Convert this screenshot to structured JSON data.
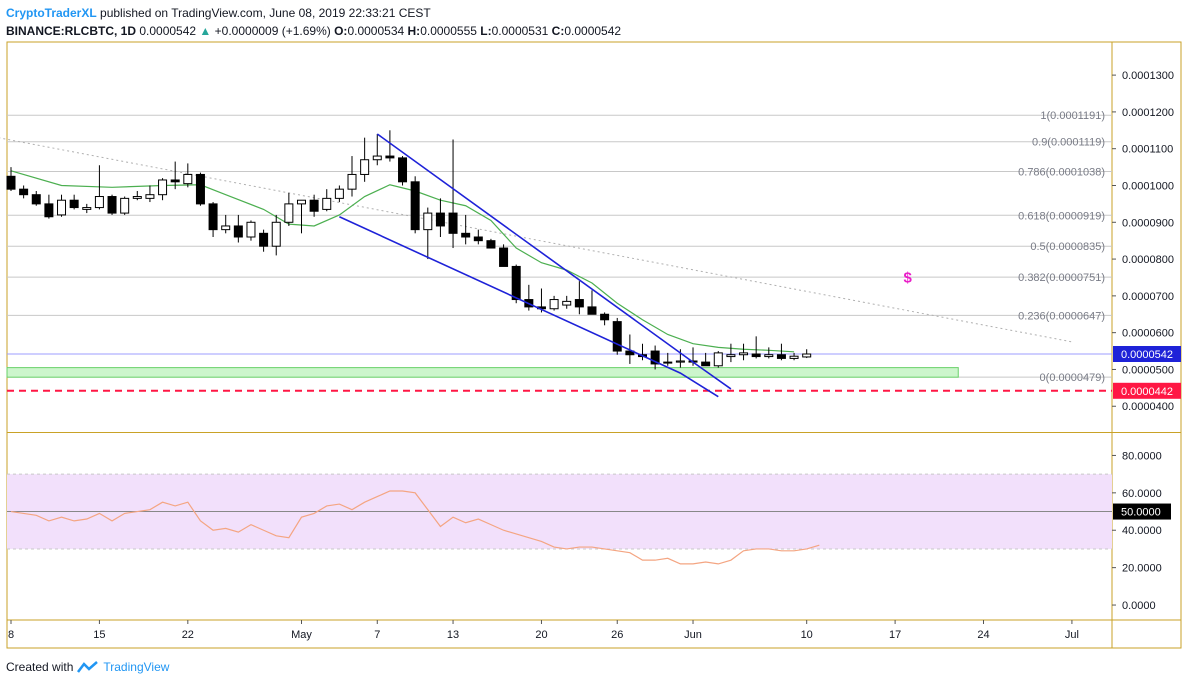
{
  "header": {
    "author": "CryptoTraderXL",
    "published": "published on TradingView.com, June 08, 2019 22:33:21 CEST",
    "symbol": "BINANCE:RLCBTC, 1D",
    "last": "0.0000542",
    "change": "+0.0000009 (+1.69%)",
    "o_label": "O:",
    "o": "0.0000534",
    "h_label": "H:",
    "h": "0.0000555",
    "l_label": "L:",
    "l": "0.0000531",
    "c_label": "C:",
    "c": "0.0000542"
  },
  "footer": {
    "created": "Created with",
    "brand": "TradingView"
  },
  "colors": {
    "frame": "#c9a227",
    "bull": "#ffffff",
    "bear": "#000000",
    "wick": "#000000",
    "ma": "#4caf50",
    "trend": "#1e22d8",
    "fib": "#c8c8c8",
    "support_zone": "#ccf5cc",
    "support_border": "#69d169",
    "red_line": "#ff1744",
    "price_line": "#9c9cff",
    "rsi": "#f4a582",
    "rsi_band": "#f2e0fb",
    "last_badge": "#1e22d8",
    "red_badge": "#ff1744",
    "dollar": "#e91ec8"
  },
  "chart_data": [
    {
      "type": "candlestick",
      "ylim": [
        3.3e-05,
        0.000139
      ],
      "y_ticks": [
        "0.0001300",
        "0.0001200",
        "0.0001100",
        "0.0001000",
        "0.0000900",
        "0.0000800",
        "0.0000700",
        "0.0000600",
        "0.0000500",
        "0.0000400"
      ],
      "y_tick_values": [
        0.00013,
        0.00012,
        0.00011,
        0.0001,
        9e-05,
        8e-05,
        7e-05,
        6e-05,
        5e-05,
        4e-05
      ],
      "x_ticks": [
        {
          "label": "8",
          "day": 0
        },
        {
          "label": "15",
          "day": 7
        },
        {
          "label": "22",
          "day": 14
        },
        {
          "label": "May",
          "day": 23
        },
        {
          "label": "7",
          "day": 29
        },
        {
          "label": "13",
          "day": 35
        },
        {
          "label": "20",
          "day": 42
        },
        {
          "label": "26",
          "day": 48
        },
        {
          "label": "Jun",
          "day": 54
        },
        {
          "label": "10",
          "day": 63
        },
        {
          "label": "17",
          "day": 70
        },
        {
          "label": "24",
          "day": 77
        },
        {
          "label": "Jul",
          "day": 84
        }
      ],
      "ohlc": [
        [
          0.0001025,
          0.000105,
          9.85e-05,
          9.9e-05
        ],
        [
          9.9e-05,
          0.0001,
          9.65e-05,
          9.75e-05
        ],
        [
          9.75e-05,
          9.85e-05,
          9.45e-05,
          9.5e-05
        ],
        [
          9.5e-05,
          9.75e-05,
          9.1e-05,
          9.15e-05
        ],
        [
          9.2e-05,
          9.75e-05,
          9.15e-05,
          9.6e-05
        ],
        [
          9.6e-05,
          9.75e-05,
          9.35e-05,
          9.4e-05
        ],
        [
          9.35e-05,
          9.5e-05,
          9.25e-05,
          9.4e-05
        ],
        [
          9.4e-05,
          0.0001055,
          9.35e-05,
          9.7e-05
        ],
        [
          9.7e-05,
          9.75e-05,
          9.2e-05,
          9.25e-05
        ],
        [
          9.25e-05,
          9.7e-05,
          9.2e-05,
          9.65e-05
        ],
        [
          9.65e-05,
          9.85e-05,
          9.6e-05,
          9.7e-05
        ],
        [
          9.65e-05,
          0.0001,
          9.55e-05,
          9.75e-05
        ],
        [
          9.75e-05,
          0.000102,
          9.6e-05,
          0.0001015
        ],
        [
          0.0001015,
          0.0001065,
          9.9e-05,
          0.000101
        ],
        [
          0.0001005,
          0.000106,
          9.95e-05,
          0.000103
        ],
        [
          0.000103,
          0.0001035,
          9.45e-05,
          9.5e-05
        ],
        [
          9.5e-05,
          9.55e-05,
          8.6e-05,
          8.8e-05
        ],
        [
          8.8e-05,
          9.2e-05,
          8.7e-05,
          8.9e-05
        ],
        [
          8.9e-05,
          9.2e-05,
          8.45e-05,
          8.6e-05
        ],
        [
          8.6e-05,
          9.05e-05,
          8.5e-05,
          9e-05
        ],
        [
          8.7e-05,
          8.8e-05,
          8.2e-05,
          8.35e-05
        ],
        [
          8.35e-05,
          9.2e-05,
          8.1e-05,
          9e-05
        ],
        [
          9e-05,
          9.8e-05,
          8.9e-05,
          9.5e-05
        ],
        [
          9.5e-05,
          9.6e-05,
          8.7e-05,
          9.6e-05
        ],
        [
          9.6e-05,
          9.75e-05,
          9.15e-05,
          9.3e-05
        ],
        [
          9.35e-05,
          9.9e-05,
          9.3e-05,
          9.65e-05
        ],
        [
          9.65e-05,
          0.0001,
          9.55e-05,
          9.9e-05
        ],
        [
          9.9e-05,
          0.000108,
          9.7e-05,
          0.000103
        ],
        [
          0.000103,
          0.000113,
          0.000101,
          0.000107
        ],
        [
          0.000107,
          0.000114,
          0.0001055,
          0.000108
        ],
        [
          0.000108,
          0.000115,
          0.0001065,
          0.0001075
        ],
        [
          0.0001075,
          0.000108,
          0.0001,
          0.000101
        ],
        [
          0.000101,
          0.0001025,
          8.7e-05,
          8.8e-05
        ],
        [
          8.8e-05,
          9.4e-05,
          8e-05,
          9.25e-05
        ],
        [
          9.25e-05,
          9.65e-05,
          8.6e-05,
          8.9e-05
        ],
        [
          9.25e-05,
          0.0001125,
          8.3e-05,
          8.7e-05
        ],
        [
          8.7e-05,
          9.2e-05,
          8.4e-05,
          8.6e-05
        ],
        [
          8.6e-05,
          8.8e-05,
          8.4e-05,
          8.5e-05
        ],
        [
          8.5e-05,
          8.55e-05,
          8.3e-05,
          8.3e-05
        ],
        [
          8.3e-05,
          8.4e-05,
          7.8e-05,
          7.8e-05
        ],
        [
          7.8e-05,
          7.85e-05,
          6.8e-05,
          6.9e-05
        ],
        [
          6.9e-05,
          7.3e-05,
          6.6e-05,
          6.7e-05
        ],
        [
          6.7e-05,
          7.2e-05,
          6.55e-05,
          6.65e-05
        ],
        [
          6.65e-05,
          7e-05,
          6.6e-05,
          6.9e-05
        ],
        [
          6.75e-05,
          7e-05,
          6.65e-05,
          6.85e-05
        ],
        [
          6.9e-05,
          7.4e-05,
          6.5e-05,
          6.7e-05
        ],
        [
          6.7e-05,
          7.15e-05,
          6.5e-05,
          6.5e-05
        ],
        [
          6.5e-05,
          6.55e-05,
          6.2e-05,
          6.35e-05
        ],
        [
          6.3e-05,
          6.4e-05,
          5.4e-05,
          5.5e-05
        ],
        [
          5.5e-05,
          5.95e-05,
          5.15e-05,
          5.4e-05
        ],
        [
          5.4e-05,
          5.7e-05,
          5.25e-05,
          5.35e-05
        ],
        [
          5.5e-05,
          5.65e-05,
          5e-05,
          5.15e-05
        ],
        [
          5.18e-05,
          5.45e-05,
          5.1e-05,
          5.2e-05
        ],
        [
          5.2e-05,
          5.55e-05,
          5.05e-05,
          5.23e-05
        ],
        [
          5.23e-05,
          5.6e-05,
          5.1e-05,
          5.2e-05
        ],
        [
          5.2e-05,
          5.45e-05,
          5.1e-05,
          5.1e-05
        ],
        [
          5.1e-05,
          5.5e-05,
          5.05e-05,
          5.45e-05
        ],
        [
          5.35e-05,
          5.7e-05,
          5.2e-05,
          5.4e-05
        ],
        [
          5.4e-05,
          5.7e-05,
          5.25e-05,
          5.45e-05
        ],
        [
          5.42e-05,
          5.9e-05,
          5.3e-05,
          5.35e-05
        ],
        [
          5.35e-05,
          5.6e-05,
          5.3e-05,
          5.4e-05
        ],
        [
          5.4e-05,
          5.7e-05,
          5.25e-05,
          5.3e-05
        ],
        [
          5.3e-05,
          5.45e-05,
          5.25e-05,
          5.36e-05
        ],
        [
          5.34e-05,
          5.55e-05,
          5.31e-05,
          5.42e-05
        ]
      ],
      "ma": [
        [
          0,
          0.000104
        ],
        [
          4,
          0.0001
        ],
        [
          8,
          9.95e-05
        ],
        [
          12,
          0.0001
        ],
        [
          15,
          0.0001002
        ],
        [
          17,
          9.75e-05
        ],
        [
          20,
          9.35e-05
        ],
        [
          22,
          8.95e-05
        ],
        [
          24,
          8.9e-05
        ],
        [
          26,
          9.2e-05
        ],
        [
          28,
          9.7e-05
        ],
        [
          30,
          0.0001002
        ],
        [
          32,
          9.85e-05
        ],
        [
          34,
          9.6e-05
        ],
        [
          36,
          9.45e-05
        ],
        [
          38,
          9.05e-05
        ],
        [
          40,
          8.3e-05
        ],
        [
          42,
          7.9e-05
        ],
        [
          44,
          7.7e-05
        ],
        [
          46,
          7.35e-05
        ],
        [
          48,
          6.8e-05
        ],
        [
          50,
          6.35e-05
        ],
        [
          52,
          5.95e-05
        ],
        [
          54,
          5.7e-05
        ],
        [
          56,
          5.6e-05
        ],
        [
          58,
          5.55e-05
        ],
        [
          60,
          5.52e-05
        ],
        [
          62,
          5.48e-05
        ]
      ],
      "fib_levels": [
        {
          "label": "1(0.0001191)",
          "value": 0.0001191
        },
        {
          "label": "0.9(0.0001119)",
          "value": 0.0001119
        },
        {
          "label": "0.786(0.0001038)",
          "value": 0.0001038
        },
        {
          "label": "0.618(0.0000919)",
          "value": 9.19e-05
        },
        {
          "label": "0.5(0.0000835)",
          "value": 8.35e-05
        },
        {
          "label": "0.382(0.0000751)",
          "value": 7.51e-05
        },
        {
          "label": "0.236(0.0000647)",
          "value": 6.47e-05
        },
        {
          "label": "0(0.0000479)",
          "value": 4.79e-05
        }
      ],
      "trend_upper": [
        [
          29,
          0.000114
        ],
        [
          54,
          5.2e-05
        ],
        [
          57,
          4.47e-05
        ]
      ],
      "trend_lower": [
        [
          26,
          9.15e-05
        ],
        [
          53,
          4.9e-05
        ],
        [
          56,
          4.26e-05
        ]
      ],
      "dotted_trend": [
        [
          -1,
          0.000113
        ],
        [
          84,
          5.75e-05
        ]
      ],
      "support_zone": {
        "from": 4.79e-05,
        "to": 5.05e-05,
        "x_end": 75
      },
      "red_line": 4.42e-05,
      "last_price": 5.42e-05,
      "badge_last": "0.0000542",
      "badge_red": "0.0000442",
      "dollar_marker": {
        "text": "$",
        "day": 71,
        "value": 7.5e-05
      }
    },
    {
      "type": "line",
      "ylim": [
        -8,
        92
      ],
      "y_ticks": [
        "80.0000",
        "60.0000",
        "40.0000",
        "20.0000",
        "0.0000"
      ],
      "y_tick_values": [
        80,
        60,
        40,
        20,
        0
      ],
      "band": [
        30,
        70
      ],
      "midline": 50,
      "badge_mid": "50.0000",
      "rsi": [
        [
          0,
          50
        ],
        [
          2,
          48
        ],
        [
          3,
          45
        ],
        [
          4,
          47
        ],
        [
          5,
          45
        ],
        [
          6,
          46
        ],
        [
          7,
          49
        ],
        [
          8,
          45
        ],
        [
          9,
          49
        ],
        [
          10,
          50
        ],
        [
          11,
          51
        ],
        [
          12,
          55
        ],
        [
          13,
          53
        ],
        [
          14,
          55
        ],
        [
          15,
          45
        ],
        [
          16,
          40
        ],
        [
          17,
          41
        ],
        [
          18,
          39
        ],
        [
          19,
          43
        ],
        [
          20,
          40
        ],
        [
          21,
          37
        ],
        [
          22,
          36
        ],
        [
          23,
          47
        ],
        [
          24,
          49
        ],
        [
          25,
          53
        ],
        [
          26,
          54
        ],
        [
          27,
          51
        ],
        [
          28,
          55
        ],
        [
          29,
          58
        ],
        [
          30,
          61
        ],
        [
          31,
          61
        ],
        [
          32,
          60
        ],
        [
          33,
          51
        ],
        [
          34,
          42
        ],
        [
          35,
          47
        ],
        [
          36,
          44
        ],
        [
          37,
          46
        ],
        [
          38,
          43
        ],
        [
          39,
          40
        ],
        [
          40,
          38
        ],
        [
          41,
          36
        ],
        [
          42,
          34
        ],
        [
          43,
          31
        ],
        [
          44,
          30
        ],
        [
          45,
          31
        ],
        [
          46,
          31
        ],
        [
          47,
          30
        ],
        [
          48,
          29
        ],
        [
          49,
          28
        ],
        [
          50,
          24
        ],
        [
          51,
          24
        ],
        [
          52,
          25
        ],
        [
          53,
          22
        ],
        [
          54,
          22
        ],
        [
          55,
          23
        ],
        [
          56,
          22
        ],
        [
          57,
          24
        ],
        [
          58,
          29
        ],
        [
          59,
          30
        ],
        [
          60,
          30
        ],
        [
          61,
          29
        ],
        [
          62,
          29
        ],
        [
          63,
          30
        ],
        [
          64,
          32
        ]
      ]
    }
  ]
}
